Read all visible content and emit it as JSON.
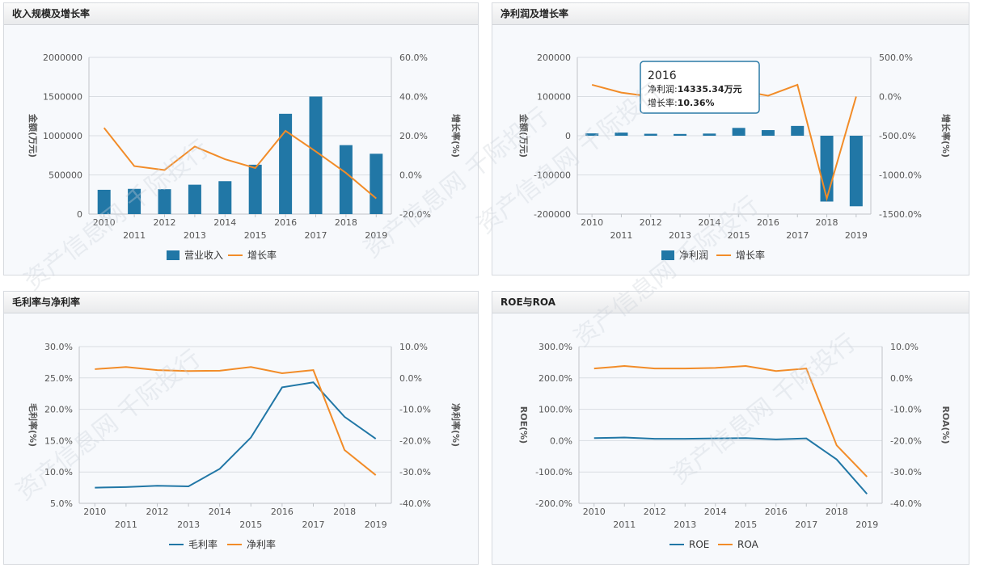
{
  "panels": [
    {
      "id": "p1",
      "title": "收入规模及增长率"
    },
    {
      "id": "p2",
      "title": "净利润及增长率"
    },
    {
      "id": "p3",
      "title": "毛利率与净利率"
    },
    {
      "id": "p4",
      "title": "ROE与ROA"
    }
  ],
  "tooltip": {
    "year": "2016",
    "label1": "净利润:",
    "value1": "14335.34万元",
    "label2": "增长率:",
    "value2": "10.36%"
  },
  "watermark_text": "资产信息网 千际投行",
  "colors": {
    "blue": "#2177a6",
    "orange": "#f28c28",
    "grid": "#d9dde2",
    "axis": "#c0c4c9"
  },
  "chart_data": [
    {
      "type": "bar+line",
      "title": "收入规模及增长率",
      "categories": [
        "2010",
        "2011",
        "2012",
        "2013",
        "2014",
        "2015",
        "2016",
        "2017",
        "2018",
        "2019"
      ],
      "ylabel": "金额(万元)",
      "y2label": "增长率(%)",
      "ylim": [
        0,
        2000000
      ],
      "y2lim": [
        -20,
        60
      ],
      "yticks": [
        "0",
        "500000",
        "1000000",
        "1500000",
        "2000000"
      ],
      "y2ticks": [
        "-20.0%",
        "0.0%",
        "20.0%",
        "40.0%",
        "60.0%"
      ],
      "series": [
        {
          "name": "营业收入",
          "kind": "bar",
          "axis": "left",
          "values": [
            310000,
            322000,
            318000,
            375000,
            420000,
            630000,
            1280000,
            1500000,
            880000,
            770000
          ]
        },
        {
          "name": "增长率",
          "kind": "line",
          "axis": "right",
          "values": [
            24,
            4.5,
            2.5,
            14.5,
            8,
            3.5,
            22.5,
            12,
            1,
            -12
          ]
        }
      ]
    },
    {
      "type": "bar+line",
      "title": "净利润及增长率",
      "categories": [
        "2010",
        "2011",
        "2012",
        "2013",
        "2014",
        "2015",
        "2016",
        "2017",
        "2018",
        "2019"
      ],
      "ylabel": "金额(万元)",
      "y2label": "增长率(%)",
      "ylim": [
        -200000,
        200000
      ],
      "y2lim": [
        -1500,
        500
      ],
      "yticks": [
        "-200000",
        "-100000",
        "0",
        "100000",
        "200000"
      ],
      "y2ticks": [
        "-1500.0%",
        "-1000.0%",
        "-500.0%",
        "0.0%",
        "500.0%"
      ],
      "series": [
        {
          "name": "净利润",
          "kind": "bar",
          "axis": "left",
          "values": [
            6000,
            8000,
            5000,
            4500,
            5500,
            20000,
            14335.34,
            25000,
            -168000,
            -180000
          ]
        },
        {
          "name": "增长率",
          "kind": "line",
          "axis": "right",
          "values": [
            150,
            50,
            0,
            -30,
            -20,
            80,
            10.36,
            150,
            -1300,
            0
          ]
        }
      ]
    },
    {
      "type": "line",
      "title": "毛利率与净利率",
      "categories": [
        "2010",
        "2011",
        "2012",
        "2013",
        "2014",
        "2015",
        "2016",
        "2017",
        "2018",
        "2019"
      ],
      "ylabel": "毛利率(%)",
      "y2label": "净利率(%)",
      "ylim": [
        5,
        30
      ],
      "y2lim": [
        -40,
        10
      ],
      "yticks": [
        "5.0%",
        "10.0%",
        "15.0%",
        "20.0%",
        "25.0%",
        "30.0%"
      ],
      "y2ticks": [
        "-40.0%",
        "-30.0%",
        "-20.0%",
        "-10.0%",
        "0.0%",
        "10.0%"
      ],
      "series": [
        {
          "name": "毛利率",
          "kind": "line",
          "axis": "left",
          "values": [
            7.5,
            7.6,
            7.8,
            7.7,
            10.5,
            15.5,
            23.5,
            24.3,
            18.8,
            15.3
          ]
        },
        {
          "name": "净利率",
          "kind": "line",
          "axis": "right",
          "values": [
            2.8,
            3.5,
            2.5,
            2.2,
            2.3,
            3.5,
            1.5,
            2.5,
            -23,
            -31
          ]
        }
      ]
    },
    {
      "type": "line",
      "title": "ROE与ROA",
      "categories": [
        "2010",
        "2011",
        "2012",
        "2013",
        "2014",
        "2015",
        "2016",
        "2017",
        "2018",
        "2019"
      ],
      "ylabel": "ROE(%)",
      "y2label": "ROA(%)",
      "ylim": [
        -200,
        300
      ],
      "y2lim": [
        -40,
        10
      ],
      "yticks": [
        "-200.0%",
        "-100.0%",
        "0.0%",
        "100.0%",
        "200.0%",
        "300.0%"
      ],
      "y2ticks": [
        "-40.0%",
        "-30.0%",
        "-20.0%",
        "-10.0%",
        "0.0%",
        "10.0%"
      ],
      "series": [
        {
          "name": "ROE",
          "kind": "line",
          "axis": "left",
          "values": [
            8,
            10,
            6,
            6,
            7,
            8,
            4,
            7,
            -60,
            -170
          ]
        },
        {
          "name": "ROA",
          "kind": "line",
          "axis": "right",
          "values": [
            3,
            3.8,
            3,
            3,
            3.2,
            3.8,
            2.2,
            3,
            -21.5,
            -31.5
          ]
        }
      ]
    }
  ]
}
